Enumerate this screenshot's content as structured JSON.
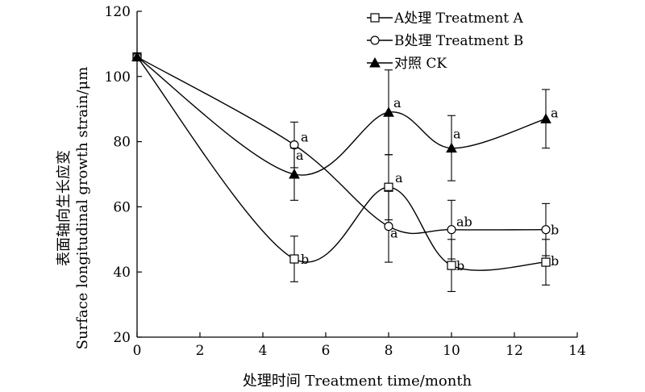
{
  "chart_data": {
    "type": "line",
    "xlabel": "处理时间 Treatment time/month",
    "ylabel_cn": "表面轴向生长应变",
    "ylabel_en": "Surface longitudinal growth strain/μm",
    "xlim": [
      0,
      14
    ],
    "ylim": [
      20,
      120
    ],
    "x_ticks": [
      0,
      2,
      4,
      6,
      8,
      10,
      12,
      14
    ],
    "y_ticks": [
      20,
      40,
      60,
      80,
      100,
      120
    ],
    "legend_position": "top-right",
    "grid": false,
    "x": [
      0,
      5,
      8,
      10,
      13
    ],
    "series": [
      {
        "name": "A处理 Treatment A",
        "marker": "square-open",
        "values": [
          106,
          44,
          66,
          42,
          43
        ],
        "errors": [
          0,
          7,
          10,
          8,
          7
        ],
        "labels": [
          "",
          "b",
          "a",
          "b",
          "b"
        ]
      },
      {
        "name": "B处理 Treatment B",
        "marker": "circle-open",
        "values": [
          106,
          79,
          54,
          53,
          53
        ],
        "errors": [
          0,
          7,
          11,
          9,
          8
        ],
        "labels": [
          "",
          "a",
          "a",
          "ab",
          "b"
        ]
      },
      {
        "name": "对照 CK",
        "marker": "triangle-filled",
        "values": [
          106,
          70,
          89,
          78,
          87
        ],
        "errors": [
          0,
          8,
          13,
          10,
          9
        ],
        "labels": [
          "",
          "a",
          "a",
          "a",
          "a"
        ]
      }
    ]
  }
}
